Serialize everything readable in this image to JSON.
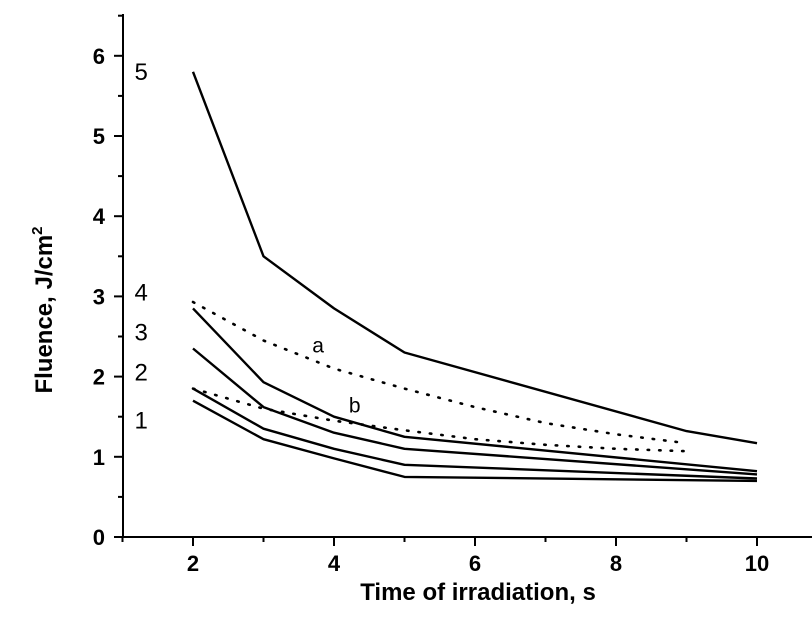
{
  "chart_data": {
    "type": "line",
    "xlabel": "Time of irradiation, s",
    "ylabel": "Fluence, J/cm",
    "ylabel_superscript": "2",
    "xlim": [
      1,
      11
    ],
    "ylim": [
      0,
      6.5
    ],
    "xticks": [
      2,
      4,
      6,
      8,
      10
    ],
    "yticks": [
      0,
      1,
      2,
      3,
      4,
      5,
      6
    ],
    "grid": false,
    "series": [
      {
        "name": "1",
        "style": "solid",
        "x": [
          2,
          3,
          4,
          5,
          10
        ],
        "y": [
          1.7,
          1.22,
          0.98,
          0.75,
          0.7
        ]
      },
      {
        "name": "2",
        "style": "solid",
        "x": [
          2,
          3,
          4,
          5,
          10
        ],
        "y": [
          1.85,
          1.35,
          1.1,
          0.9,
          0.73
        ]
      },
      {
        "name": "3",
        "style": "solid",
        "x": [
          2,
          3,
          4,
          5,
          10
        ],
        "y": [
          2.35,
          1.62,
          1.3,
          1.1,
          0.78
        ]
      },
      {
        "name": "4",
        "style": "solid",
        "x": [
          2,
          3,
          4,
          5,
          10
        ],
        "y": [
          2.85,
          1.93,
          1.5,
          1.25,
          0.82
        ]
      },
      {
        "name": "5",
        "style": "solid",
        "x": [
          2,
          3,
          4,
          5,
          9,
          10
        ],
        "y": [
          5.8,
          3.5,
          2.85,
          2.3,
          1.32,
          1.17
        ]
      },
      {
        "name": "a",
        "style": "dotted",
        "x": [
          2,
          3,
          4,
          5,
          6,
          7,
          8,
          9
        ],
        "y": [
          2.93,
          2.45,
          2.1,
          1.85,
          1.62,
          1.42,
          1.28,
          1.17
        ]
      },
      {
        "name": "b",
        "style": "dotted",
        "x": [
          2,
          3,
          4,
          5,
          6,
          7,
          8,
          9
        ],
        "y": [
          1.85,
          1.6,
          1.45,
          1.33,
          1.22,
          1.15,
          1.1,
          1.07
        ]
      }
    ]
  }
}
